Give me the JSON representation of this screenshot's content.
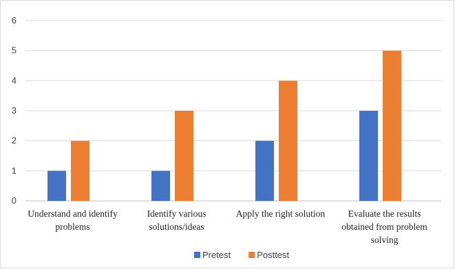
{
  "chart_data": {
    "type": "bar",
    "categories": [
      [
        "Understand and identify",
        "problems"
      ],
      [
        "Identify various",
        "solutions/ideas"
      ],
      [
        "Apply the right solution"
      ],
      [
        "Evaluate the results",
        "obtained from problem",
        "solving"
      ]
    ],
    "series": [
      {
        "name": "Pretest",
        "color": "#4472c4",
        "values": [
          1,
          1,
          2,
          3
        ]
      },
      {
        "name": "Posttest",
        "color": "#ed7d31",
        "values": [
          2,
          3,
          4,
          5
        ]
      }
    ],
    "yticks": [
      "0",
      "1",
      "2",
      "3",
      "4",
      "5",
      "6"
    ],
    "ylim": [
      0,
      6
    ],
    "grid": true,
    "legend_position": "bottom"
  }
}
